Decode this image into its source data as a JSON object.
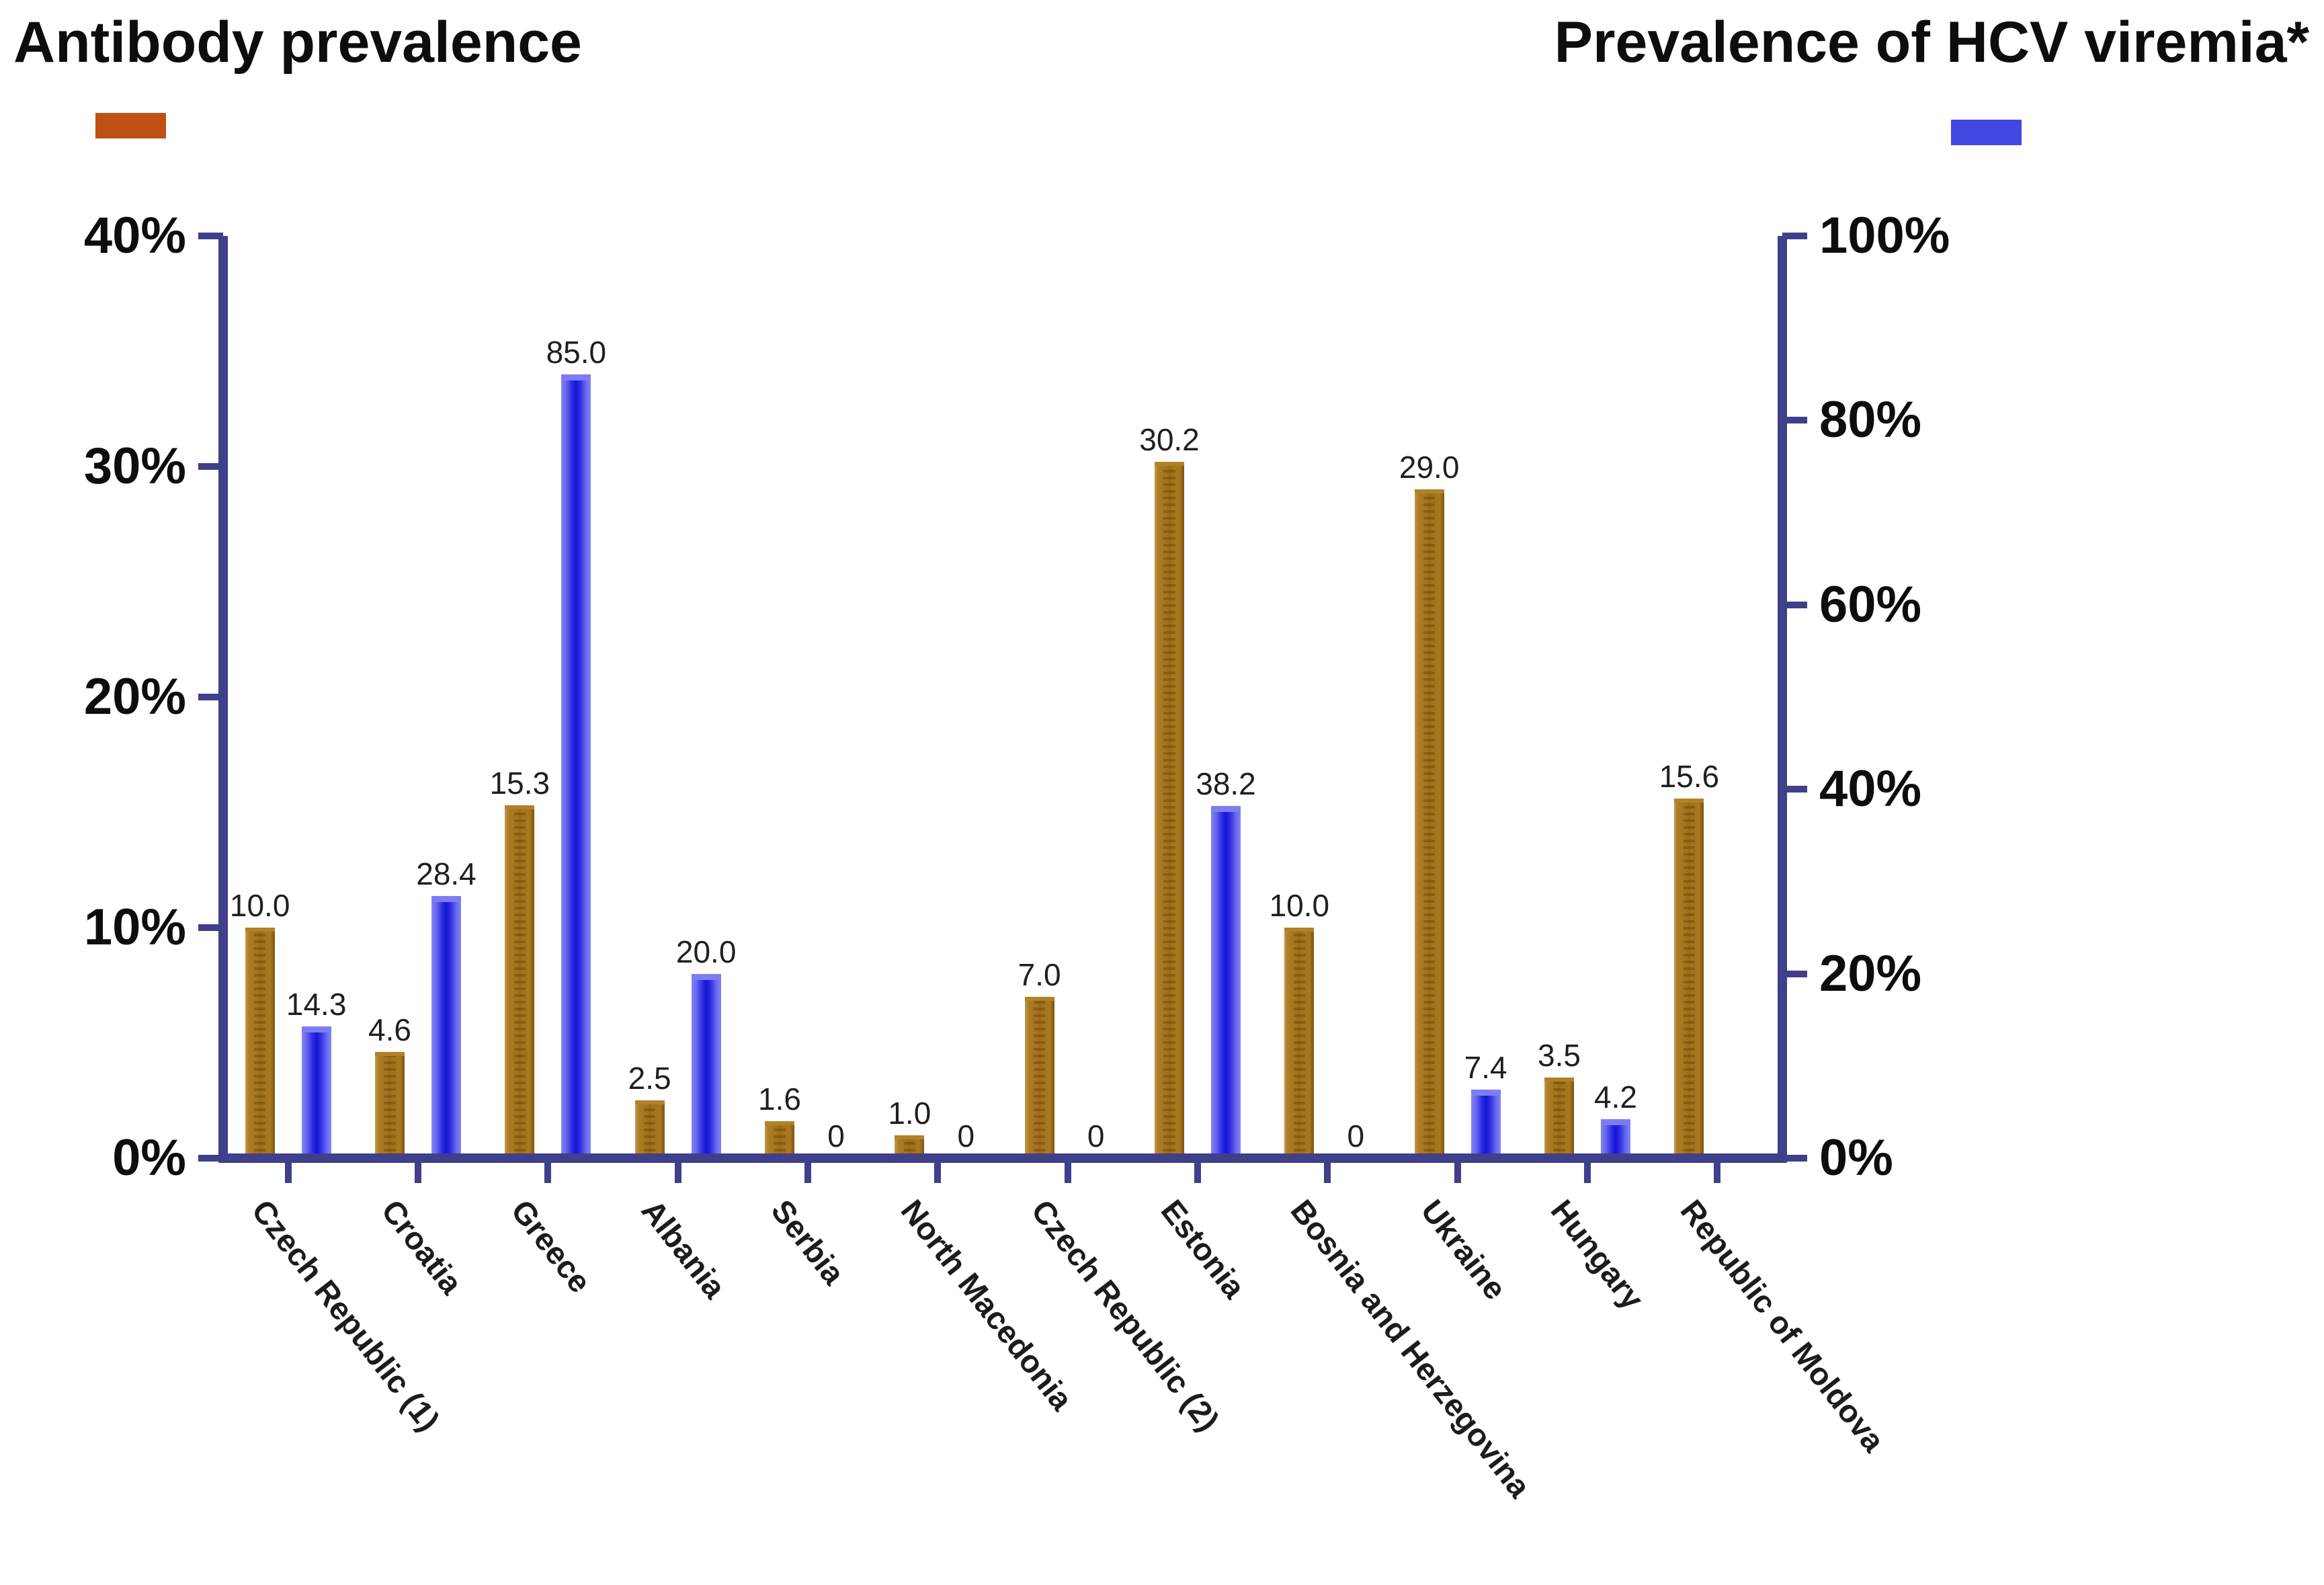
{
  "legend": {
    "left": {
      "label": "Antibody prevalence",
      "color": "#c05114"
    },
    "right": {
      "label": "Prevalence of HCV viremia*",
      "color": "#4347e2"
    }
  },
  "left_axis": {
    "max": 40,
    "ticks": [
      {
        "value": 0,
        "label": "0%"
      },
      {
        "value": 10,
        "label": "10%"
      },
      {
        "value": 20,
        "label": "20%"
      },
      {
        "value": 30,
        "label": "30%"
      },
      {
        "value": 40,
        "label": "40%"
      }
    ]
  },
  "right_axis": {
    "max": 100,
    "ticks": [
      {
        "value": 0,
        "label": "0%"
      },
      {
        "value": 20,
        "label": "20%"
      },
      {
        "value": 40,
        "label": "40%"
      },
      {
        "value": 60,
        "label": "60%"
      },
      {
        "value": 80,
        "label": "80%"
      },
      {
        "value": 100,
        "label": "100%"
      }
    ]
  },
  "chart_data": {
    "type": "bar",
    "title": "",
    "xlabel": "",
    "ylabel_left": "Antibody prevalence",
    "ylabel_right": "Prevalence of HCV viremia*",
    "grid": false,
    "legend_position": "top",
    "ylim_left": [
      0,
      40
    ],
    "ylim_right": [
      0,
      100
    ],
    "categories": [
      "Czech Republic (1)",
      "Croatia",
      "Greece",
      "Albania",
      "Serbia",
      "North Macedonia",
      "Czech Republic (2)",
      "Estonia",
      "Bosnia and Herzegovina",
      "Ukraine",
      "Hungary",
      "Republic of Moldova"
    ],
    "series": [
      {
        "name": "Antibody prevalence",
        "axis": "left",
        "color": "#a4731c",
        "values": [
          10.0,
          4.6,
          15.3,
          2.5,
          1.6,
          1.0,
          7.0,
          30.2,
          10.0,
          29.0,
          3.5,
          15.6
        ],
        "labels": [
          "10.0",
          "4.6",
          "15.3",
          "2.5",
          "1.6",
          "1.0",
          "7.0",
          "30.2",
          "10.0",
          "29.0",
          "3.5",
          "15.6"
        ]
      },
      {
        "name": "Prevalence of HCV viremia*",
        "axis": "right",
        "color": "#1c1cdc",
        "values": [
          14.3,
          28.4,
          85.0,
          20.0,
          0,
          0,
          0,
          38.2,
          0,
          7.4,
          4.2,
          null
        ],
        "labels": [
          "14.3",
          "28.4",
          "85.0",
          "20.0",
          "0",
          "0",
          "0",
          "38.2",
          "0",
          "7.4",
          "4.2",
          ""
        ]
      }
    ]
  }
}
